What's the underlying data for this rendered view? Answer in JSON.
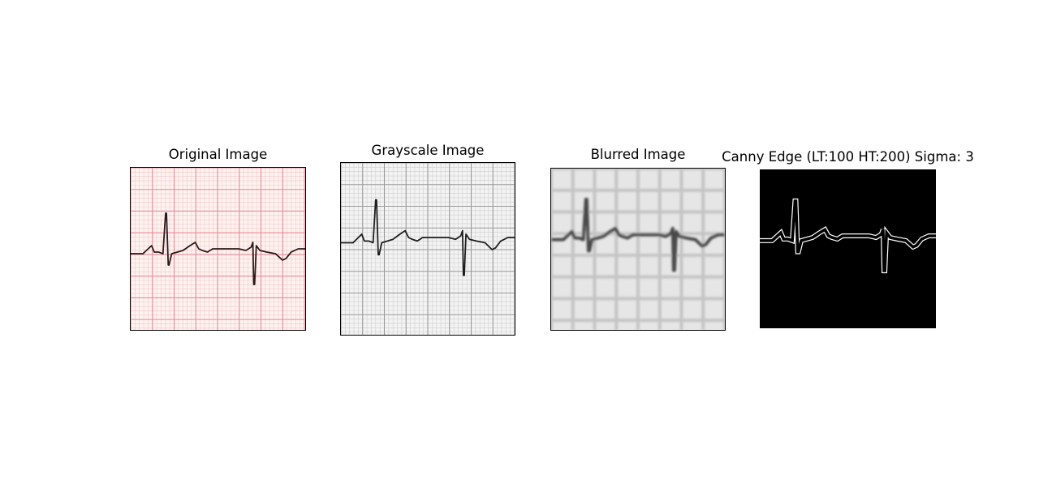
{
  "figure": {
    "panels": [
      {
        "title": "Original Image",
        "image": "ecg-strip-pink-grid"
      },
      {
        "title": "Grayscale Image",
        "image": "ecg-strip-grayscale"
      },
      {
        "title": "Blurred Image",
        "image": "ecg-strip-blurred"
      },
      {
        "title": "Canny Edge (LT:100 HT:200) Sigma: 3",
        "image": "ecg-strip-canny-edges"
      }
    ]
  },
  "colors": {
    "grid_minor_original": "#f4c6cc",
    "grid_major_original": "#e98a98",
    "paper_original": "#fdf3ef",
    "trace": "#2a1a1a",
    "grid_minor_gray": "#cfcfcf",
    "grid_major_gray": "#9a9a9a",
    "paper_gray": "#f3f3f3",
    "paper_blur": "#e6e6e6",
    "grid_blur": "#c4c4c4",
    "trace_blur": "#4a4a4a",
    "canny_bg": "#000000",
    "canny_edge": "#ffffff"
  }
}
